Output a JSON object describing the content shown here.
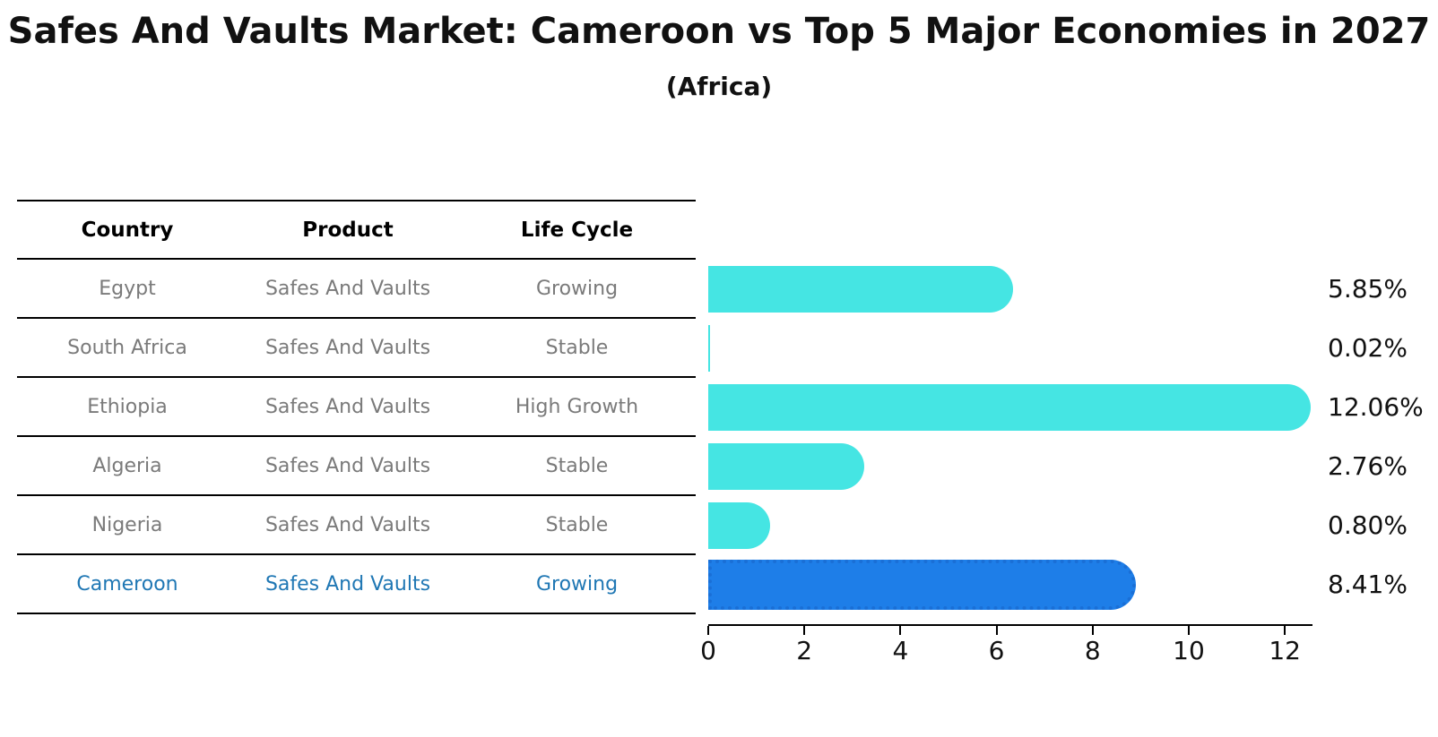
{
  "title": "Safes And Vaults Market: Cameroon vs Top 5 Major Economies in 2027",
  "subtitle": "(Africa)",
  "table": {
    "headers": [
      "Country",
      "Product",
      "Life Cycle"
    ],
    "rows": [
      {
        "country": "Egypt",
        "product": "Safes And Vaults",
        "life_cycle": "Growing",
        "highlight": false
      },
      {
        "country": "South Africa",
        "product": "Safes And Vaults",
        "life_cycle": "Stable",
        "highlight": false
      },
      {
        "country": "Ethiopia",
        "product": "Safes And Vaults",
        "life_cycle": "High Growth",
        "highlight": false
      },
      {
        "country": "Algeria",
        "product": "Safes And Vaults",
        "life_cycle": "Stable",
        "highlight": false
      },
      {
        "country": "Nigeria",
        "product": "Safes And Vaults",
        "life_cycle": "Stable",
        "highlight": false
      },
      {
        "country": "Cameroon",
        "product": "Safes And Vaults",
        "life_cycle": "Growing",
        "highlight": true
      }
    ]
  },
  "chart_data": {
    "type": "bar",
    "orientation": "horizontal",
    "title": "Safes And Vaults Market: Cameroon vs Top 5 Major Economies in 2027 (Africa)",
    "categories": [
      "Egypt",
      "South Africa",
      "Ethiopia",
      "Algeria",
      "Nigeria",
      "Cameroon"
    ],
    "values": [
      5.85,
      0.02,
      12.06,
      2.76,
      0.8,
      8.41
    ],
    "value_labels": [
      "5.85%",
      "0.02%",
      "12.06%",
      "2.76%",
      "0.80%",
      "8.41%"
    ],
    "xlabel": "",
    "ylabel": "",
    "xlim": [
      0,
      12.56
    ],
    "x_ticks": [
      "0",
      "2",
      "4",
      "6",
      "8",
      "10",
      "12"
    ],
    "grid": false,
    "legend": false,
    "highlight_index": 5
  },
  "colors": {
    "bar": "#45e5e3",
    "highlight_bar": "#1e7ee8",
    "highlight_border": "#1a6fd6",
    "highlight_text": "#1f77b4",
    "row_text": "#7a7a7a",
    "axis": "#000000"
  }
}
